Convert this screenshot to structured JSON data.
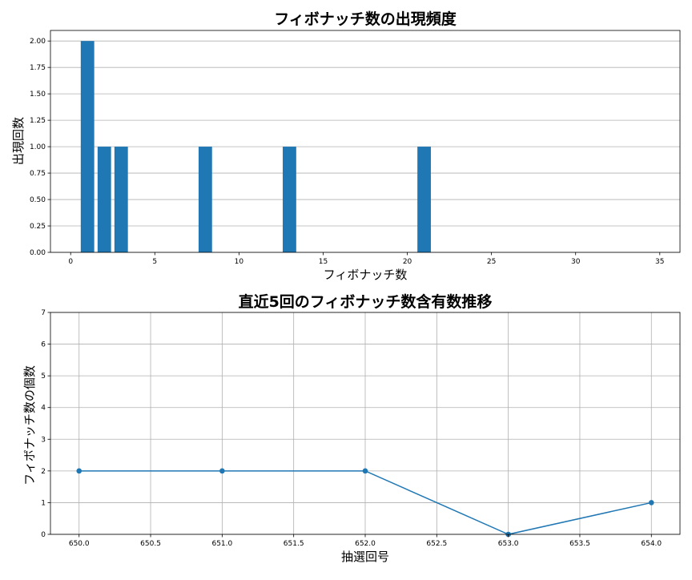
{
  "chart_data": [
    {
      "type": "bar",
      "title": "フィボナッチ数の出現頻度",
      "xlabel": "フィボナッチ数",
      "ylabel": "出現回数",
      "xlim": [
        -1.2,
        36.2
      ],
      "ylim": [
        0,
        2.1
      ],
      "x_ticks": [
        0,
        5,
        10,
        15,
        20,
        25,
        30,
        35
      ],
      "x_tick_labels": [
        "0",
        "5",
        "10",
        "15",
        "20",
        "25",
        "30",
        "35"
      ],
      "y_ticks": [
        0,
        0.25,
        0.5,
        0.75,
        1.0,
        1.25,
        1.5,
        1.75,
        2.0
      ],
      "y_tick_labels": [
        "0.00",
        "0.25",
        "0.50",
        "0.75",
        "1.00",
        "1.25",
        "1.50",
        "1.75",
        "2.00"
      ],
      "grid": "y",
      "color": "#1f77b4",
      "bar_width": 0.8,
      "x": [
        1,
        2,
        3,
        8,
        13,
        21
      ],
      "values": [
        2,
        1,
        1,
        1,
        1,
        1
      ]
    },
    {
      "type": "line",
      "title": "直近5回のフィボナッチ数含有数推移",
      "xlabel": "抽選回号",
      "ylabel": "フィボナッチ数の個数",
      "xlim": [
        649.8,
        654.2
      ],
      "ylim": [
        0,
        7
      ],
      "x_ticks": [
        650.0,
        650.5,
        651.0,
        651.5,
        652.0,
        652.5,
        653.0,
        653.5,
        654.0
      ],
      "x_tick_labels": [
        "650.0",
        "650.5",
        "651.0",
        "651.5",
        "652.0",
        "652.5",
        "653.0",
        "653.5",
        "654.0"
      ],
      "y_ticks": [
        0,
        1,
        2,
        3,
        4,
        5,
        6,
        7
      ],
      "y_tick_labels": [
        "0",
        "1",
        "2",
        "3",
        "4",
        "5",
        "6",
        "7"
      ],
      "grid": "both",
      "color": "#1f77b4",
      "marker": "circle",
      "x": [
        650,
        651,
        652,
        653,
        654
      ],
      "values": [
        2,
        2,
        2,
        0,
        1
      ]
    }
  ]
}
